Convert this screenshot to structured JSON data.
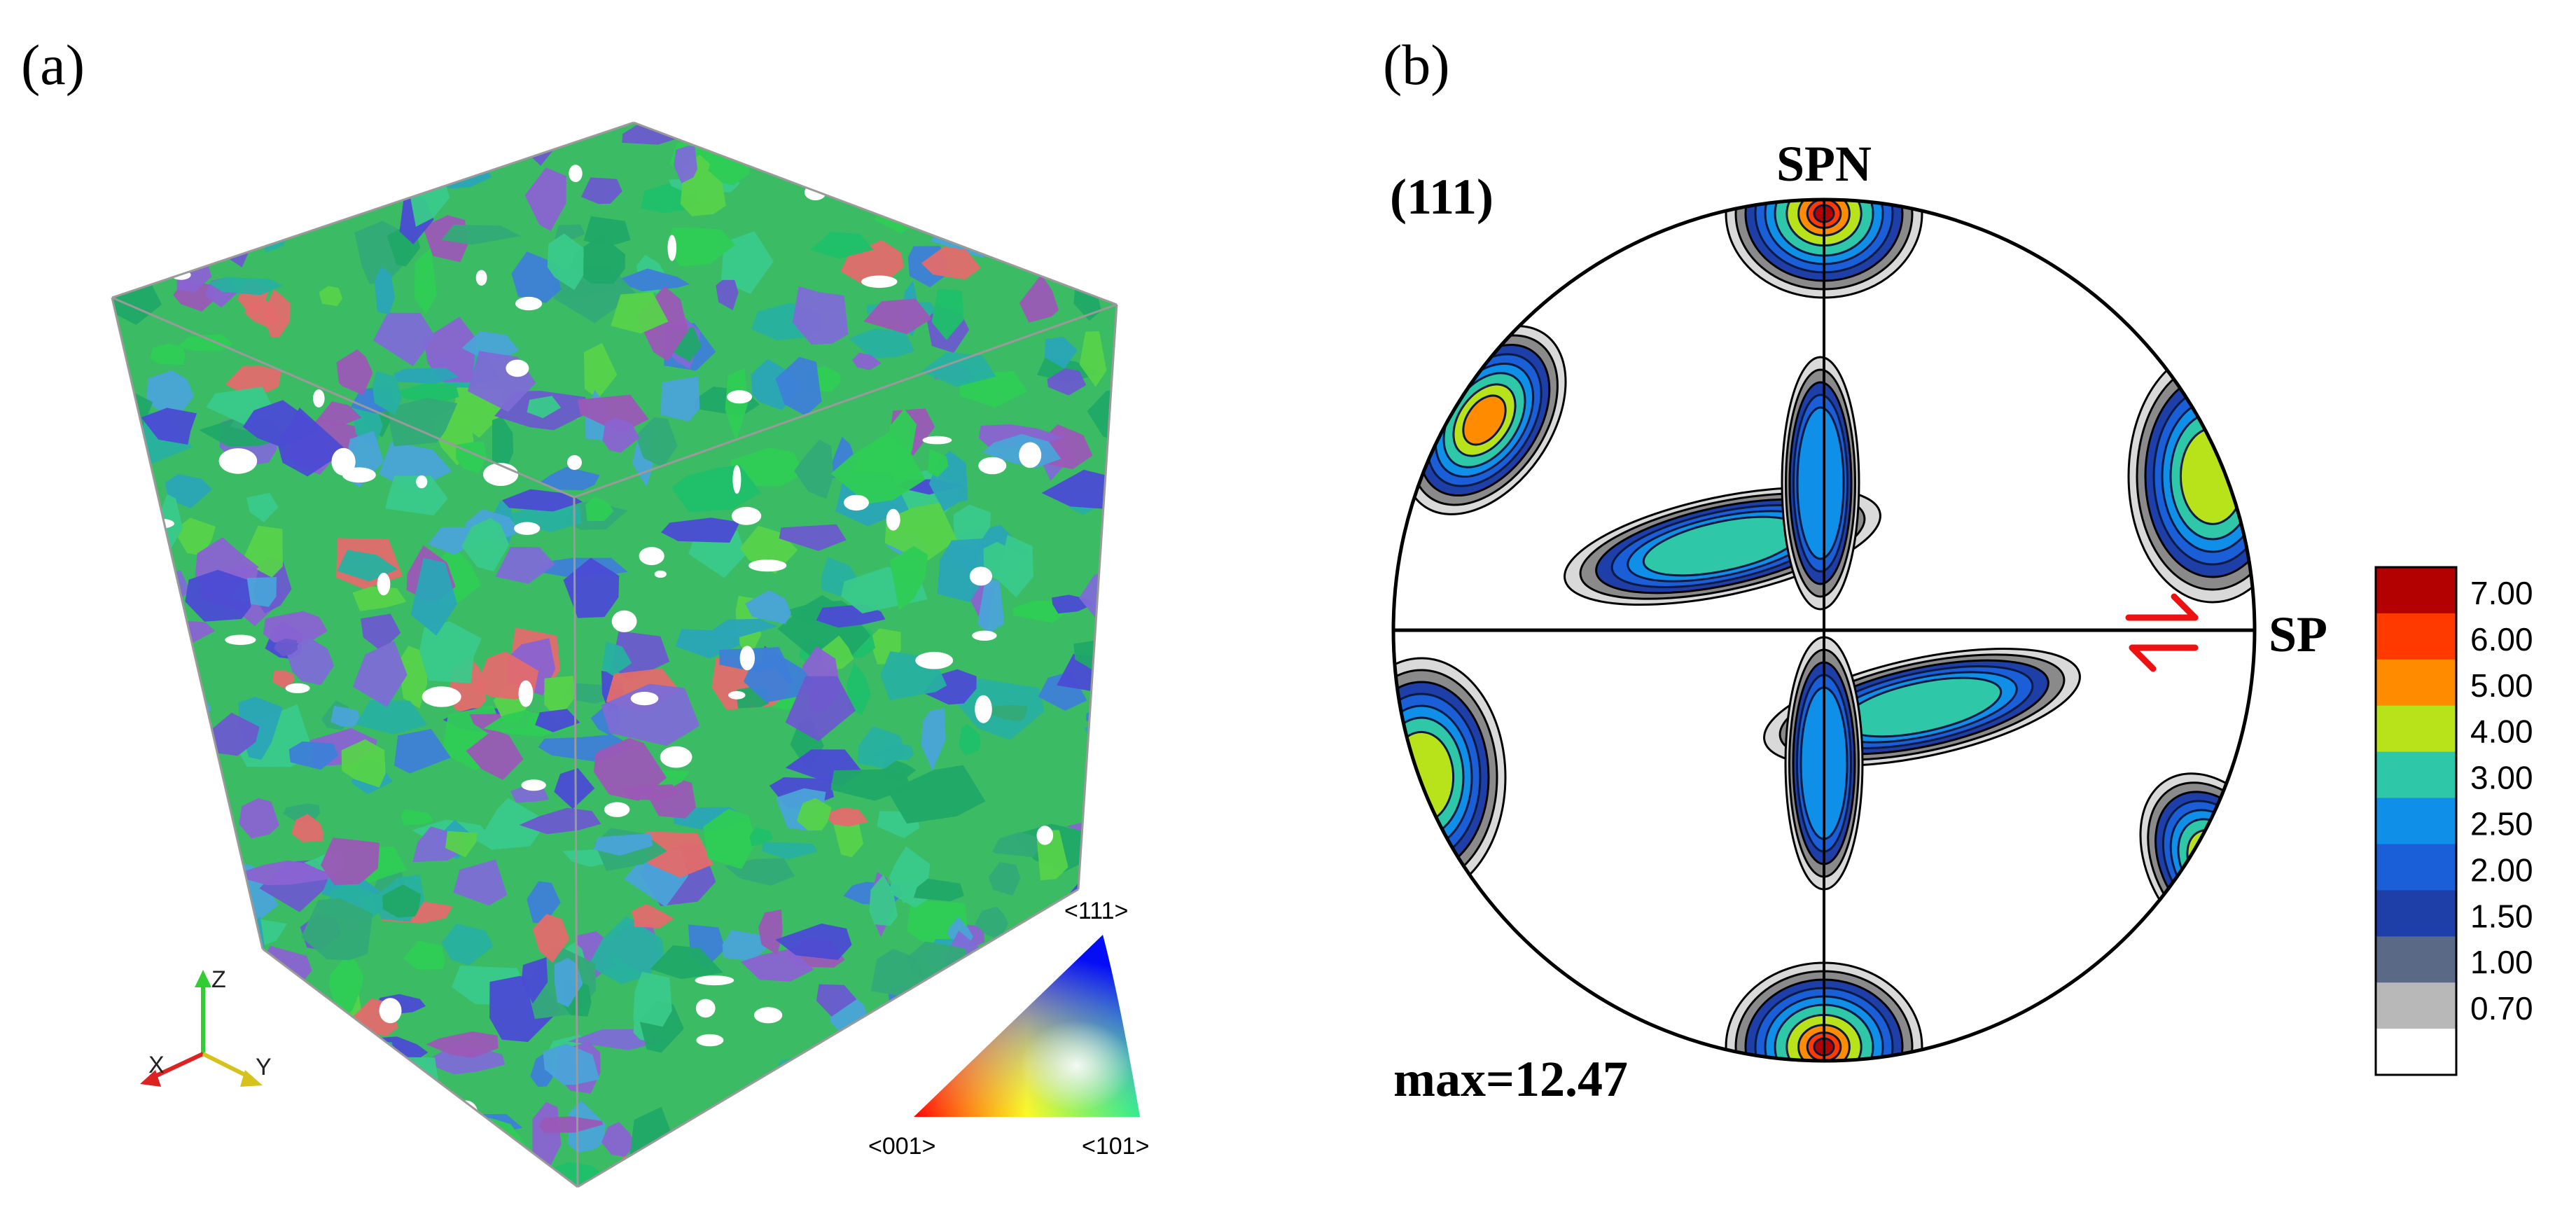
{
  "panel_a": {
    "label": "(a)",
    "axes": {
      "z": "Z",
      "x": "X",
      "y": "Y"
    },
    "ipf_key": {
      "top": "<111>",
      "bottom_left": "<001>",
      "bottom_right": "<101>"
    }
  },
  "panel_b": {
    "label": "(b)",
    "plane": "(111)",
    "top_label": "SPN",
    "right_label": "SP",
    "max_label": "max=12.47",
    "colorbar": {
      "ticks": [
        "7.00",
        "6.00",
        "5.00",
        "4.00",
        "3.00",
        "2.50",
        "2.00",
        "1.50",
        "1.00",
        "0.70"
      ],
      "colors": [
        "#b30000",
        "#ff3a00",
        "#ff8c00",
        "#b8e21a",
        "#2ec8a8",
        "#0f8fe8",
        "#1a5ed8",
        "#1e3fa8",
        "#5a6a86",
        "#b8b8b8",
        "#ffffff"
      ]
    },
    "arrow_color": "#ee1111"
  }
}
